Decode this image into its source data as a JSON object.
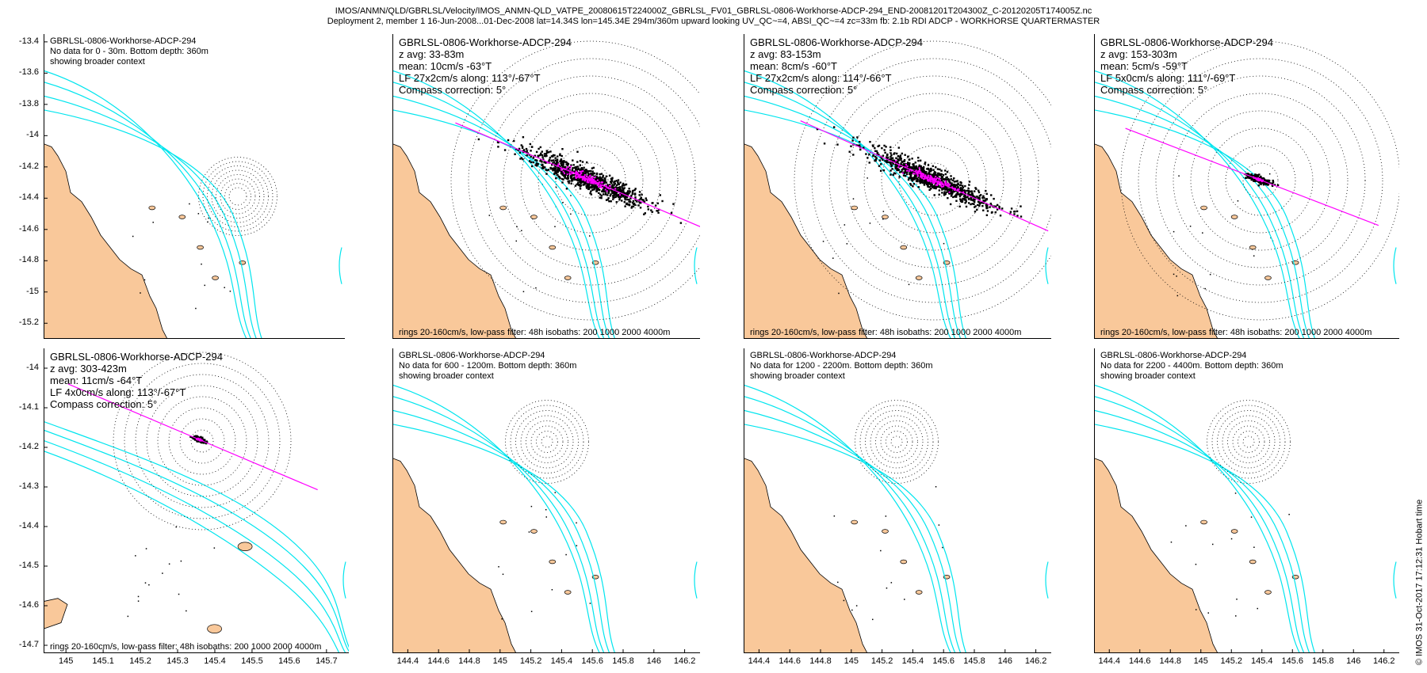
{
  "header": {
    "line1": "IMOS/ANMN/QLD/GBRLSL/Velocity/IMOS_ANMN-QLD_VATPE_20080615T224000Z_GBRLSL_FV01_GBRLSL-0806-Workhorse-ADCP-294_END-20081201T204300Z_C-20120205T174005Z.nc",
    "line2": "Deployment 2, member 1 16-Jun-2008...01-Dec-2008 lat=14.34S lon=145.34E 294m/360m upward looking UV_QC~=4, ABSI_QC~=4 zc=33m fb: 2.1b RDI ADCP - WORKHORSE QUARTERMASTER"
  },
  "watermark": "© IMOS 31-Oct-2017 17:12:31 Hobart time",
  "colors": {
    "land": "#f9c89a",
    "isobath": "#00e5ee",
    "axis_line": "#ff00ff",
    "scatter": "#000000",
    "scatter_core": "#ff00ff",
    "rings": "#000000"
  },
  "footer_text": "rings 20-160cm/s, low-pass filter: 48h isobaths: 200 1000 2000 4000m",
  "chart_data": [
    {
      "type": "scatter",
      "title": "GBRLSL-0806-Workhorse-ADCP-294",
      "lines": [
        "No data for 0 - 30m. Bottom depth: 360m",
        "showing broader context"
      ],
      "has_data": false,
      "yticks": [
        -13.4,
        -13.6,
        -13.8,
        -14,
        -14.2,
        -14.4,
        -14.6,
        -14.8,
        -15,
        -15.2
      ],
      "xticks": [],
      "ylim": [
        -15.3,
        -13.35
      ],
      "xlim": [
        144.3,
        146.3
      ]
    },
    {
      "type": "scatter",
      "title": "GBRLSL-0806-Workhorse-ADCP-294",
      "lines": [
        "z avg: 33-83m",
        "mean: 10cm/s -63°T",
        "LF 27x2cm/s along: 113°/-67°T",
        "Compass correction: 5°"
      ],
      "has_data": true,
      "mean_speed_cms": 10,
      "mean_dir_degT": -63,
      "lf_major_cms": 27,
      "lf_minor_cms": 2,
      "along_deg": 113,
      "yticks": [],
      "xticks": []
    },
    {
      "type": "scatter",
      "title": "GBRLSL-0806-Workhorse-ADCP-294",
      "lines": [
        "z avg: 83-153m",
        "mean: 8cm/s -60°T",
        "LF 27x2cm/s along: 114°/-66°T",
        "Compass correction: 5°"
      ],
      "has_data": true,
      "mean_speed_cms": 8,
      "mean_dir_degT": -60,
      "lf_major_cms": 27,
      "lf_minor_cms": 2,
      "along_deg": 114,
      "yticks": [],
      "xticks": []
    },
    {
      "type": "scatter",
      "title": "GBRLSL-0806-Workhorse-ADCP-294",
      "lines": [
        "z avg: 153-303m",
        "mean: 5cm/s -59°T",
        "LF 5x0cm/s along: 111°/-69°T",
        "Compass correction: 5°"
      ],
      "has_data": true,
      "mean_speed_cms": 5,
      "mean_dir_degT": -59,
      "lf_major_cms": 5,
      "lf_minor_cms": 0,
      "along_deg": 111,
      "yticks": [],
      "xticks": []
    },
    {
      "type": "scatter",
      "title": "GBRLSL-0806-Workhorse-ADCP-294",
      "lines": [
        "z avg: 303-423m",
        "mean: 11cm/s -64°T",
        "LF 4x0cm/s along: 113°/-67°T",
        "Compass correction: 5°"
      ],
      "has_data": true,
      "mean_speed_cms": 11,
      "mean_dir_degT": -64,
      "lf_major_cms": 4,
      "lf_minor_cms": 0,
      "along_deg": 113,
      "yticks": [
        -14,
        -14.1,
        -14.2,
        -14.3,
        -14.4,
        -14.5,
        -14.6,
        -14.7
      ],
      "xticks": [
        145,
        145.1,
        145.2,
        145.3,
        145.4,
        145.5,
        145.6,
        145.7
      ],
      "ylim": [
        -14.72,
        -13.95
      ],
      "xlim": [
        144.94,
        145.76
      ]
    },
    {
      "type": "scatter",
      "title": "GBRLSL-0806-Workhorse-ADCP-294",
      "lines": [
        "No data for 600 - 1200m. Bottom depth: 360m",
        "showing broader context"
      ],
      "has_data": false,
      "yticks": [],
      "xticks": [
        144.4,
        144.6,
        144.8,
        145,
        145.2,
        145.4,
        145.6,
        145.8,
        146,
        146.2
      ],
      "xlim": [
        144.3,
        146.3
      ]
    },
    {
      "type": "scatter",
      "title": "GBRLSL-0806-Workhorse-ADCP-294",
      "lines": [
        "No data for 1200 - 2200m. Bottom depth: 360m",
        "showing broader context"
      ],
      "has_data": false,
      "yticks": [],
      "xticks": [
        144.4,
        144.6,
        144.8,
        145,
        145.2,
        145.4,
        145.6,
        145.8,
        146,
        146.2
      ],
      "xlim": [
        144.3,
        146.3
      ]
    },
    {
      "type": "scatter",
      "title": "GBRLSL-0806-Workhorse-ADCP-294",
      "lines": [
        "No data for 2200 - 4400m. Bottom depth: 360m",
        "showing broader context"
      ],
      "has_data": false,
      "yticks": [],
      "xticks": [
        144.4,
        144.6,
        144.8,
        145,
        145.2,
        145.4,
        145.6,
        145.8,
        146,
        146.2
      ],
      "xlim": [
        144.3,
        146.3
      ]
    }
  ]
}
